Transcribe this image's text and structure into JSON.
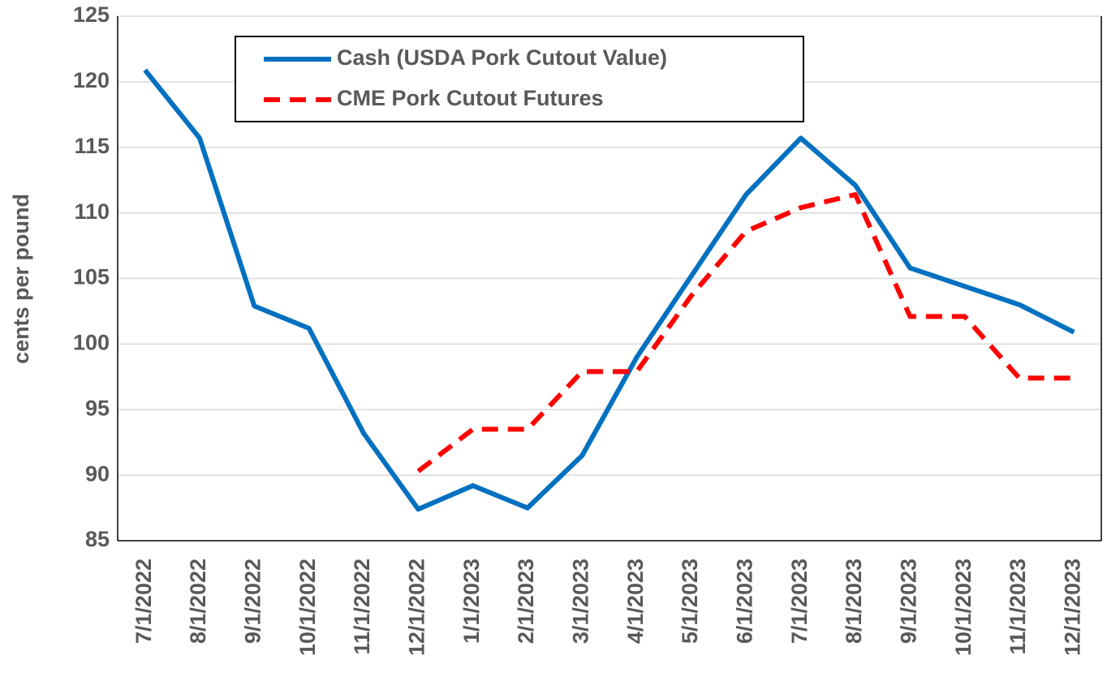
{
  "chart_data": {
    "type": "line",
    "y_label": "cents per pound",
    "categories": [
      "7/1/2022",
      "8/1/2022",
      "9/1/2022",
      "10/1/2022",
      "11/1/2022",
      "12/1/2022",
      "1/1/2023",
      "2/1/2023",
      "3/1/2023",
      "4/1/2023",
      "5/1/2023",
      "6/1/2023",
      "7/1/2023",
      "8/1/2023",
      "9/1/2023",
      "10/1/2023",
      "11/1/2023",
      "12/1/2023"
    ],
    "series": [
      {
        "name": "Cash (USDA Pork Cutout Value)",
        "color": "#0070c0",
        "dashed": false,
        "values": [
          120.9,
          115.7,
          102.9,
          101.2,
          93.2,
          87.4,
          89.2,
          87.5,
          91.5,
          99.0,
          105.2,
          111.4,
          115.7,
          112.1,
          105.8,
          104.4,
          103.0,
          100.9
        ]
      },
      {
        "name": "CME Pork Cutout Futures",
        "color": "#ff0000",
        "dashed": true,
        "values": [
          null,
          null,
          null,
          null,
          null,
          90.3,
          93.5,
          93.5,
          97.9,
          97.9,
          103.7,
          108.6,
          110.4,
          111.4,
          102.1,
          102.1,
          97.4,
          97.4
        ]
      }
    ],
    "ylim": [
      85,
      125
    ],
    "yticks": [
      85,
      90,
      95,
      100,
      105,
      110,
      115,
      120,
      125
    ],
    "grid": true
  }
}
